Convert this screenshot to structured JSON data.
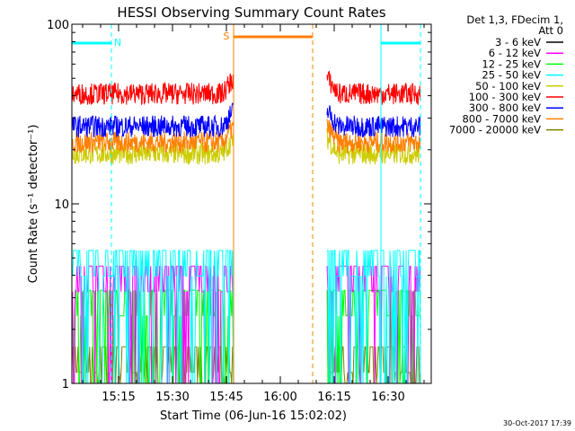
{
  "chart_data": {
    "type": "line",
    "title": "HESSI Observing Summary Count Rates",
    "xlabel": "Start Time (06-Jun-16 15:02:02)",
    "ylabel": "Count Rate (s⁻¹ detector⁻¹)",
    "y_scale": "log",
    "ylim": [
      1,
      100
    ],
    "xlim": [
      "15:02",
      "16:42"
    ],
    "x_ticks": [
      "15:15",
      "15:30",
      "15:45",
      "16:00",
      "16:15",
      "16:30"
    ],
    "y_ticks": [
      "1",
      "10",
      "100"
    ],
    "grid": false,
    "legend_header": [
      "Det 1,3, FDecim 1,",
      "Att 0"
    ],
    "legend_position": "right",
    "data_gap": [
      "15:47",
      "16:13"
    ],
    "flags": [
      {
        "label": "N",
        "kind": "night",
        "intervals": [
          [
            "15:02",
            "15:13"
          ],
          [
            "16:28",
            "16:39"
          ]
        ],
        "color": "#00ffff"
      },
      {
        "label": "S",
        "kind": "saa",
        "intervals": [
          [
            "15:47",
            "16:09"
          ]
        ],
        "color": "#ff7f00"
      }
    ],
    "series": [
      {
        "name": "3 - 6 keV",
        "color": "#000000",
        "level": 1.0
      },
      {
        "name": "6 - 12 keV",
        "color": "#ff00ff",
        "level": 4.5
      },
      {
        "name": "12 - 25 keV",
        "color": "#00ff00",
        "level": 3.3
      },
      {
        "name": "25 - 50 keV",
        "color": "#00ffff",
        "level": 5.5
      },
      {
        "name": "50 - 100 keV",
        "color": "#cccc00",
        "level": 19
      },
      {
        "name": "100 - 300 keV",
        "color": "#ff0000",
        "level": 41
      },
      {
        "name": "300 - 800 keV",
        "color": "#0000ff",
        "level": 27
      },
      {
        "name": "800 - 7000 keV",
        "color": "#ff7f00",
        "level": 22
      },
      {
        "name": "7000 - 20000 keV",
        "color": "#808000",
        "level": 1.6
      }
    ]
  },
  "footer": {
    "timestamp": "30-Oct-2017 17:39"
  }
}
